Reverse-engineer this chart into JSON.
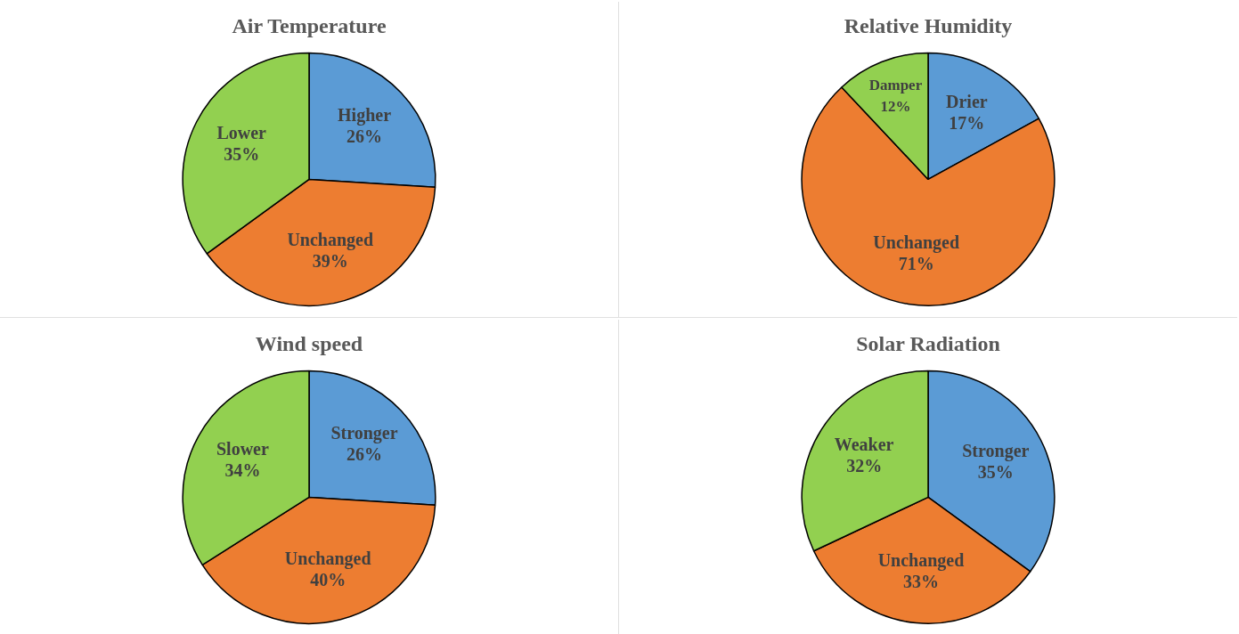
{
  "chart_data": [
    {
      "type": "pie",
      "title": "Air Temperature",
      "categories": [
        "Higher",
        "Unchanged",
        "Lower"
      ],
      "values": [
        26,
        39,
        35
      ],
      "value_labels": [
        "26%",
        "39%",
        "35%"
      ],
      "colors": [
        "#5b9bd5",
        "#ed7d31",
        "#92d050"
      ],
      "legend": false
    },
    {
      "type": "pie",
      "title": "Relative Humidity",
      "categories": [
        "Drier",
        "Unchanged",
        "Damper"
      ],
      "values": [
        17,
        71,
        12
      ],
      "value_labels": [
        "17%",
        "71%",
        "12%"
      ],
      "colors": [
        "#5b9bd5",
        "#ed7d31",
        "#92d050"
      ],
      "legend": false
    },
    {
      "type": "pie",
      "title": "Wind speed",
      "categories": [
        "Stronger",
        "Unchanged",
        "Slower"
      ],
      "values": [
        26,
        40,
        34
      ],
      "value_labels": [
        "26%",
        "40%",
        "34%"
      ],
      "colors": [
        "#5b9bd5",
        "#ed7d31",
        "#92d050"
      ],
      "legend": false
    },
    {
      "type": "pie",
      "title": "Solar Radiation",
      "categories": [
        "Stronger",
        "Unchanged",
        "Weaker"
      ],
      "values": [
        35,
        33,
        32
      ],
      "value_labels": [
        "35%",
        "33%",
        "32%"
      ],
      "colors": [
        "#5b9bd5",
        "#ed7d31",
        "#92d050"
      ],
      "legend": false
    }
  ]
}
